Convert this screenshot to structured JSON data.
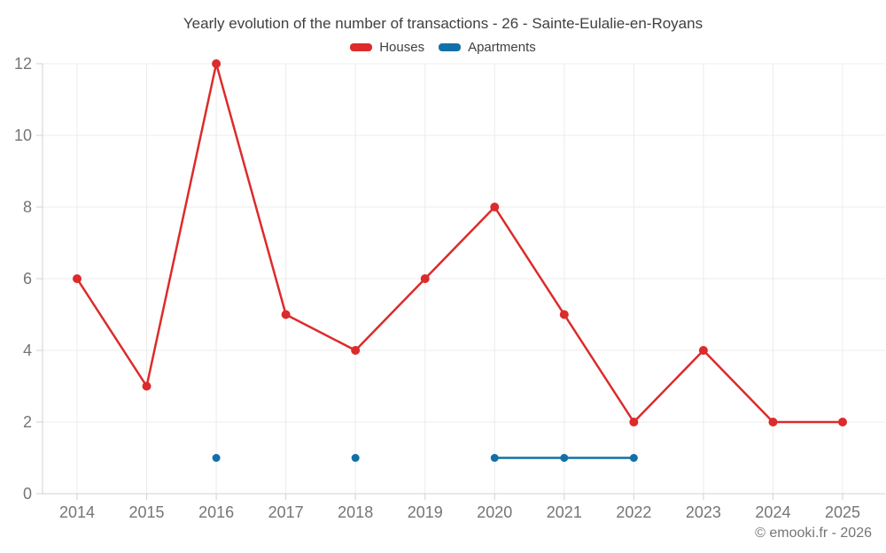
{
  "title": "Yearly evolution of the number of transactions - 26 - Sainte-Eulalie-en-Royans",
  "footer": "© emooki.fr - 2026",
  "colors": {
    "houses": "#dc2b2b",
    "apartments": "#1270a8",
    "grid": "#ececec",
    "axis": "#d2d2d2",
    "tick_text": "#757575"
  },
  "chart_data": {
    "type": "line",
    "title": "Yearly evolution of the number of transactions - 26 - Sainte-Eulalie-en-Royans",
    "categories": [
      "2014",
      "2015",
      "2016",
      "2017",
      "2018",
      "2019",
      "2020",
      "2021",
      "2022",
      "2023",
      "2024",
      "2025"
    ],
    "series": [
      {
        "name": "Houses",
        "color": "#dc2b2b",
        "values": [
          6,
          3,
          12,
          5,
          4,
          6,
          8,
          5,
          2,
          4,
          2,
          2
        ]
      },
      {
        "name": "Apartments",
        "color": "#1270a8",
        "values": [
          null,
          null,
          1,
          null,
          1,
          null,
          1,
          1,
          1,
          null,
          null,
          null
        ]
      }
    ],
    "xlabel": "",
    "ylabel": "",
    "y_ticks": [
      0,
      2,
      4,
      6,
      8,
      10,
      12
    ],
    "ylim": [
      0,
      12
    ],
    "grid": true,
    "legend_position": "top"
  }
}
